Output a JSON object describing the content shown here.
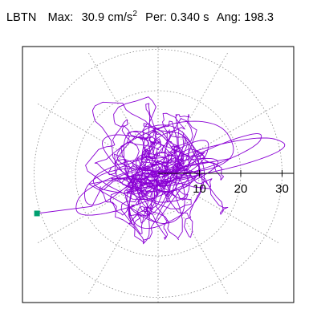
{
  "header": {
    "station": "LBTN",
    "max_label": "Max:",
    "max_value": "30.9",
    "max_unit_base": "cm/s",
    "max_unit_exp": "2",
    "per_label": "Per:",
    "per_value": "0.340 s",
    "ang_label": "Ang:",
    "ang_value": "198.3"
  },
  "chart_data": {
    "type": "polar-trace",
    "station": "LBTN",
    "max_amplitude": 30.9,
    "amplitude_unit": "cm/s^2",
    "period_s": 0.34,
    "angle_deg": 198.3,
    "radial_ticks": [
      10,
      20,
      30
    ],
    "radial_ticks_labels": [
      "10",
      "20",
      "30"
    ],
    "radial_range": [
      0,
      30
    ],
    "grid": "dotted",
    "angular_grid_step_deg": 30,
    "trace_color": "#8a00d4",
    "marker_color": "#00a070",
    "marker_point": [
      -29.3,
      -9.7
    ],
    "orbit_loops": [
      {
        "cx": 12,
        "cy": 3,
        "rx": 20,
        "ry": 3,
        "rot": 14
      },
      {
        "cx": -4,
        "cy": -3,
        "rx": 18,
        "ry": 4,
        "rot": 18
      },
      {
        "cx": 0,
        "cy": 3,
        "rx": 10,
        "ry": 8,
        "rot": 10
      },
      {
        "cx": -2,
        "cy": 3,
        "rx": 12,
        "ry": 5,
        "rot": -18
      },
      {
        "cx": 5,
        "cy": 6,
        "rx": 14,
        "ry": 6,
        "rot": 6
      },
      {
        "cx": -1,
        "cy": 1,
        "rx": 6,
        "ry": 10,
        "rot": 40
      },
      {
        "cx": 2,
        "cy": -2,
        "rx": 8,
        "ry": 12,
        "rot": -25
      },
      {
        "cx": 4,
        "cy": 2,
        "rx": 10,
        "ry": 3,
        "rot": 30
      },
      {
        "cx": -6,
        "cy": -1,
        "rx": 9,
        "ry": 4,
        "rot": 5
      },
      {
        "cx": 1,
        "cy": 0,
        "rx": 4,
        "ry": 7,
        "rot": 70
      },
      {
        "cx": 0,
        "cy": -6,
        "rx": 7,
        "ry": 6,
        "rot": 0
      },
      {
        "cx": -12,
        "cy": -3,
        "rx": 7,
        "ry": 3,
        "rot": 30
      },
      {
        "cx": 13,
        "cy": 4,
        "rx": 14,
        "ry": 2,
        "rot": 22
      }
    ]
  }
}
